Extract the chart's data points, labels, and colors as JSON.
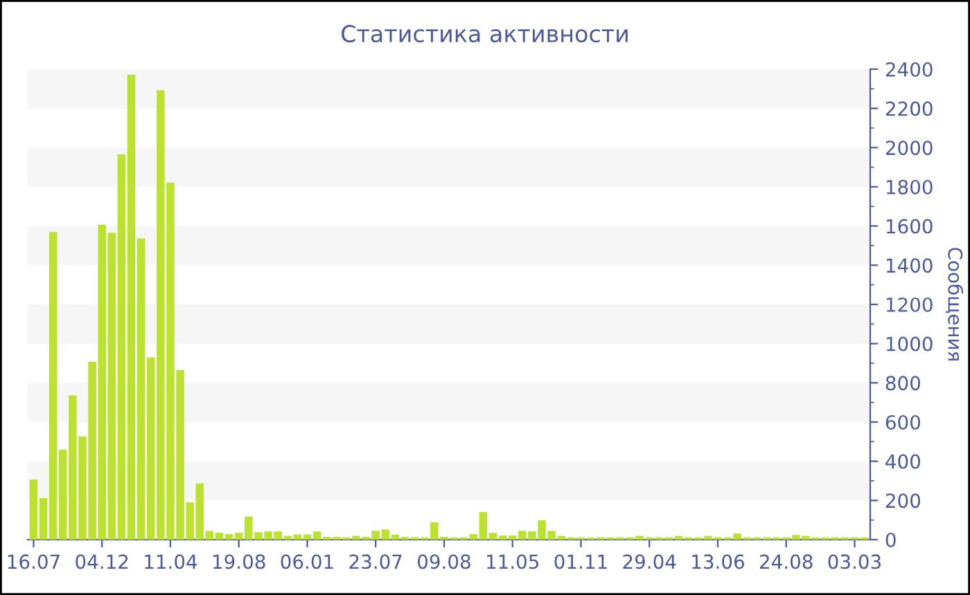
{
  "chart_data": {
    "type": "bar",
    "title": "Статистика активности",
    "ylabel": "Сообщения",
    "categories": [
      "16.07",
      null,
      null,
      null,
      null,
      null,
      null,
      "04.12",
      null,
      null,
      null,
      null,
      null,
      null,
      "11.04",
      null,
      null,
      null,
      null,
      null,
      null,
      "19.08",
      null,
      null,
      null,
      null,
      null,
      null,
      "06.01",
      null,
      null,
      null,
      null,
      null,
      null,
      "23.07",
      null,
      null,
      null,
      null,
      null,
      null,
      "09.08",
      null,
      null,
      null,
      null,
      null,
      null,
      "11.05",
      null,
      null,
      null,
      null,
      null,
      null,
      "01.11",
      null,
      null,
      null,
      null,
      null,
      null,
      "29.04",
      null,
      null,
      null,
      null,
      null,
      null,
      "13.06",
      null,
      null,
      null,
      null,
      null,
      null,
      "24.08",
      null,
      null,
      null,
      null,
      null,
      null,
      "03.03",
      null
    ],
    "values": [
      306,
      212,
      1570,
      459,
      736,
      527,
      908,
      1607,
      1565,
      1965,
      2372,
      1537,
      930,
      2292,
      1821,
      866,
      190,
      287,
      45,
      35,
      28,
      35,
      118,
      38,
      42,
      42,
      19,
      26,
      26,
      42,
      14,
      14,
      12,
      19,
      14,
      45,
      52,
      26,
      14,
      12,
      12,
      89,
      14,
      12,
      12,
      28,
      141,
      35,
      21,
      21,
      45,
      42,
      99,
      45,
      19,
      12,
      12,
      10,
      12,
      12,
      12,
      12,
      19,
      12,
      12,
      12,
      19,
      12,
      12,
      19,
      12,
      12,
      31,
      12,
      12,
      12,
      12,
      12,
      24,
      19,
      12,
      12,
      12,
      12,
      12,
      12
    ],
    "color": "#bde130",
    "ylim": [
      0,
      2400
    ],
    "yticks": [
      0,
      200,
      400,
      600,
      800,
      1000,
      1200,
      1400,
      1600,
      1800,
      2000,
      2200,
      2400
    ],
    "bands": [
      {
        "axis": "y",
        "from": 200,
        "to": 400,
        "color": "#f6f6f6"
      },
      {
        "axis": "y",
        "from": 600,
        "to": 800,
        "color": "#f6f6f6"
      },
      {
        "axis": "y",
        "from": 1000,
        "to": 1200,
        "color": "#f6f6f6"
      },
      {
        "axis": "y",
        "from": 1400,
        "to": 1600,
        "color": "#f6f6f6"
      },
      {
        "axis": "y",
        "from": 1800,
        "to": 2000,
        "color": "#f6f6f6"
      },
      {
        "axis": "y",
        "from": 2200,
        "to": 2400,
        "color": "#f6f6f6"
      }
    ]
  }
}
